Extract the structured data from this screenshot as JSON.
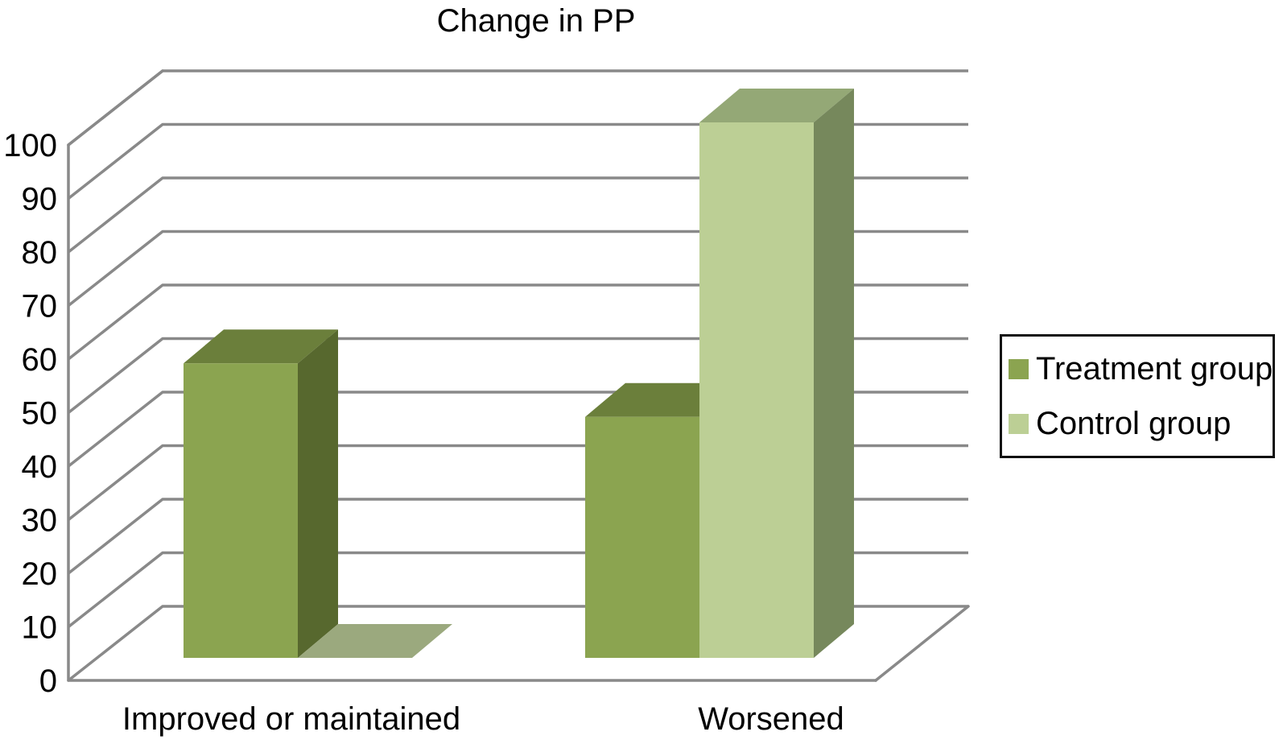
{
  "chart_data": {
    "type": "bar",
    "projection": "3d",
    "title": "Change in PP",
    "categories": [
      "Improved or maintained",
      "Worsened"
    ],
    "series": [
      {
        "name": "Treatment group",
        "values": [
          55,
          45
        ],
        "colors": {
          "front": "#8BA450",
          "top": "#6B7F3B",
          "side": "#57682E"
        }
      },
      {
        "name": "Control group",
        "values": [
          0,
          100
        ],
        "colors": {
          "front": "#BCCF95",
          "top": "#94A876",
          "side": "#76885C",
          "zero_flat": "#9BA97E"
        }
      }
    ],
    "ylim": [
      0,
      100
    ],
    "yticks": [
      0,
      10,
      20,
      30,
      40,
      50,
      60,
      70,
      80,
      90,
      100
    ],
    "xlabel": "",
    "ylabel": "",
    "grid": true,
    "legend_position": "right",
    "gridline_color": "#898989",
    "text_color": "#000000"
  }
}
